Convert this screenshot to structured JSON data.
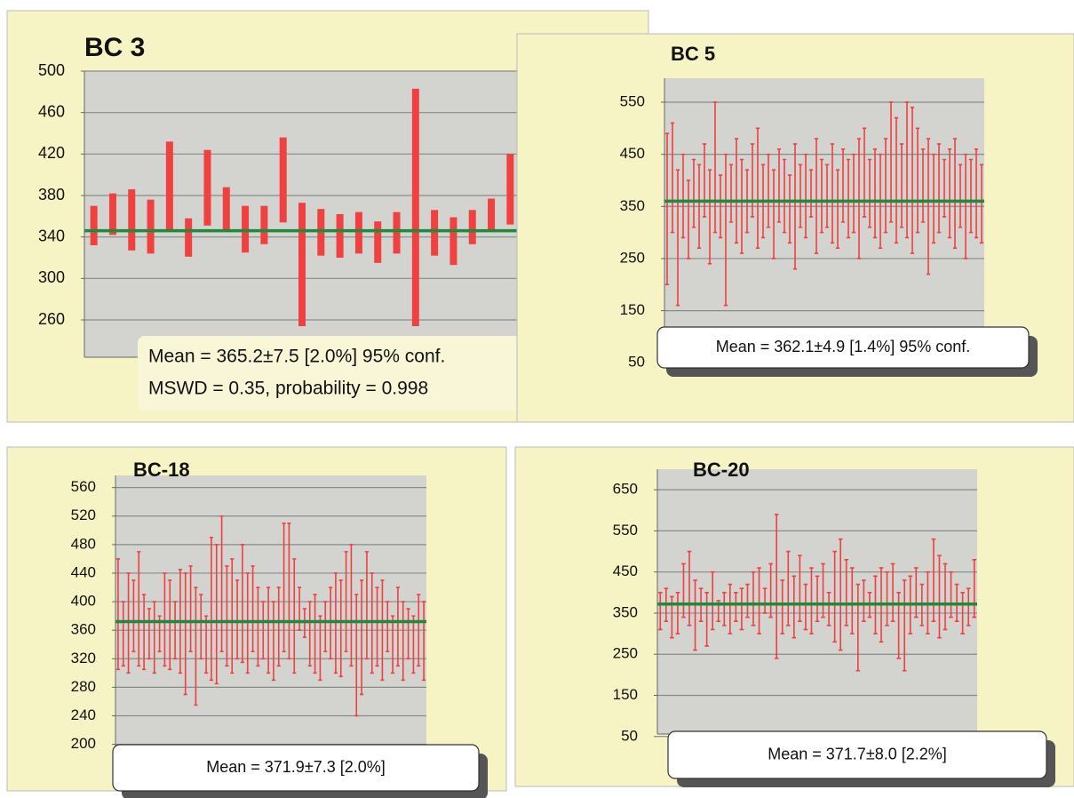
{
  "chart_data": [
    {
      "type": "range-bar",
      "title": "BC 3",
      "annotations": [
        "Mean = 365.2±7.5  [2.0%]  95% conf.",
        "MSWD = 0.35, probability = 0.998"
      ],
      "ylim": [
        224,
        500
      ],
      "yticks": [
        260,
        300,
        340,
        380,
        420,
        460,
        500
      ],
      "grid": true,
      "bar_color": "#f04040",
      "line_color": "#1f8a3c",
      "reference_line": 346,
      "low": [
        332,
        342,
        327,
        324,
        346,
        321,
        351,
        346,
        325,
        333,
        354,
        254,
        322,
        320,
        324,
        315,
        324,
        254,
        322,
        313,
        333,
        346,
        352
      ],
      "high": [
        370,
        382,
        386,
        376,
        432,
        358,
        424,
        388,
        370,
        370,
        436,
        373,
        367,
        362,
        364,
        355,
        364,
        483,
        366,
        359,
        366,
        377,
        420
      ]
    },
    {
      "type": "error-bar",
      "title": "BC 5",
      "annotations": [
        "Mean = 362.1±4.9  [1.4%]  95% conf."
      ],
      "ylim": [
        47,
        596
      ],
      "yticks": [
        50,
        150,
        250,
        350,
        450,
        550
      ],
      "grid": true,
      "bar_color": "#f04040",
      "line_color": "#1f8a3c",
      "reference_line": 360,
      "low": [
        200,
        300,
        160,
        290,
        250,
        310,
        270,
        330,
        240,
        300,
        290,
        160,
        320,
        280,
        260,
        300,
        330,
        270,
        290,
        310,
        250,
        320,
        300,
        280,
        230,
        310,
        290,
        330,
        260,
        300,
        310,
        280,
        270,
        320,
        290,
        300,
        250,
        330,
        310,
        290,
        270,
        300,
        320,
        280,
        310,
        290,
        260,
        300,
        320,
        220,
        280,
        300,
        330,
        290,
        270,
        310,
        250,
        300,
        290,
        280
      ],
      "high": [
        490,
        510,
        420,
        450,
        400,
        440,
        430,
        470,
        420,
        550,
        410,
        450,
        430,
        480,
        440,
        420,
        470,
        500,
        430,
        450,
        420,
        460,
        440,
        410,
        470,
        430,
        450,
        420,
        480,
        440,
        430,
        470,
        420,
        460,
        440,
        450,
        480,
        500,
        440,
        460,
        450,
        480,
        550,
        520,
        470,
        550,
        540,
        500,
        460,
        480,
        450,
        470,
        440,
        460,
        480,
        430,
        450,
        440,
        460,
        430
      ]
    },
    {
      "type": "error-bar",
      "title": "BC-18",
      "annotations": [
        "Mean = 371.9±7.3  [2.0%]"
      ],
      "ylim": [
        197,
        577
      ],
      "yticks": [
        200,
        240,
        280,
        320,
        360,
        400,
        440,
        480,
        520,
        560
      ],
      "grid": true,
      "bar_color": "#f04040",
      "line_color": "#1f8a3c",
      "reference_line": 372,
      "low": [
        305,
        310,
        300,
        330,
        310,
        305,
        320,
        300,
        330,
        310,
        305,
        320,
        300,
        270,
        330,
        255,
        320,
        300,
        290,
        285,
        330,
        310,
        300,
        320,
        315,
        300,
        330,
        310,
        320,
        300,
        290,
        310,
        330,
        320,
        300,
        360,
        350,
        310,
        300,
        290,
        330,
        320,
        300,
        295,
        330,
        310,
        240,
        270,
        320,
        300,
        310,
        290,
        330,
        300,
        310,
        290,
        320,
        300,
        310,
        290
      ],
      "high": [
        460,
        400,
        440,
        430,
        470,
        410,
        390,
        400,
        380,
        440,
        430,
        400,
        445,
        440,
        450,
        420,
        410,
        380,
        490,
        480,
        520,
        450,
        460,
        430,
        480,
        440,
        450,
        420,
        400,
        420,
        400,
        420,
        510,
        510,
        460,
        420,
        390,
        400,
        410,
        380,
        400,
        420,
        440,
        430,
        470,
        480,
        410,
        430,
        470,
        440,
        420,
        430,
        400,
        380,
        420,
        400,
        390,
        380,
        410,
        400
      ]
    },
    {
      "type": "error-bar",
      "title": "BC-20",
      "annotations": [
        "Mean = 371.7±8.0  [2.2%]"
      ],
      "ylim": [
        56,
        700
      ],
      "yticks": [
        50,
        150,
        250,
        350,
        450,
        550,
        650
      ],
      "grid": true,
      "bar_color": "#f04040",
      "line_color": "#1f8a3c",
      "reference_line": 372,
      "low": [
        310,
        330,
        290,
        300,
        340,
        320,
        260,
        330,
        270,
        310,
        330,
        320,
        300,
        330,
        310,
        340,
        320,
        300,
        350,
        340,
        240,
        300,
        320,
        290,
        330,
        310,
        300,
        330,
        340,
        320,
        280,
        260,
        320,
        300,
        210,
        330,
        340,
        300,
        280,
        320,
        330,
        240,
        210,
        300,
        340,
        320,
        300,
        330,
        290,
        310,
        340,
        330,
        300,
        320,
        340
      ],
      "high": [
        400,
        410,
        390,
        400,
        470,
        500,
        430,
        410,
        400,
        450,
        380,
        400,
        420,
        400,
        410,
        420,
        450,
        460,
        410,
        470,
        590,
        430,
        500,
        440,
        490,
        420,
        460,
        440,
        470,
        400,
        500,
        530,
        480,
        460,
        420,
        430,
        400,
        440,
        460,
        450,
        470,
        400,
        430,
        440,
        460,
        420,
        450,
        530,
        490,
        470,
        450,
        420,
        400,
        410,
        480
      ]
    }
  ]
}
